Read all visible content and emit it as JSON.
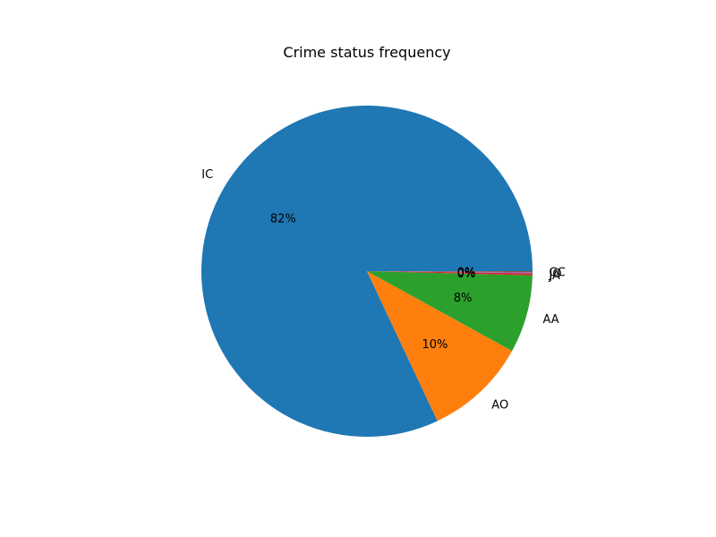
{
  "chart_data": {
    "type": "pie",
    "title": "Crime status frequency",
    "autopct_format": "{p}%",
    "start_angle_deg": 0,
    "direction": "counterclockwise",
    "slices": [
      {
        "label": "IC",
        "percent": 82.0,
        "color": "#1f77b4"
      },
      {
        "label": "AO",
        "percent": 10.0,
        "color": "#ff7f0e"
      },
      {
        "label": "AA",
        "percent": 7.6,
        "color": "#2ca02c"
      },
      {
        "label": "JA",
        "percent": 0.2,
        "color": "#d62728"
      },
      {
        "label": "JO",
        "percent": 0.1,
        "color": "#9467bd"
      },
      {
        "label": "CC",
        "percent": 0.1,
        "color": "#8c564b"
      }
    ]
  }
}
